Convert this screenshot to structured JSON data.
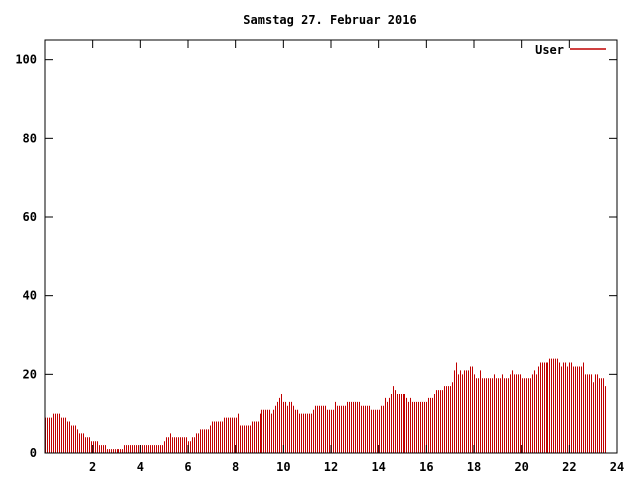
{
  "chart_data": {
    "type": "bar",
    "title": "Samstag 27. Februar 2016",
    "xlabel": "",
    "ylabel": "",
    "xlim": [
      0,
      24
    ],
    "ylim": [
      0,
      105
    ],
    "x_ticks": [
      2,
      4,
      6,
      8,
      10,
      12,
      14,
      16,
      18,
      20,
      22,
      24
    ],
    "y_ticks": [
      0,
      20,
      40,
      60,
      80,
      100
    ],
    "grid": false,
    "legend": {
      "position": "top-right",
      "entries": [
        "User"
      ]
    },
    "color": "#c00000",
    "series": [
      {
        "name": "User",
        "interval_minutes": 5,
        "values": [
          9,
          9,
          9,
          9,
          10,
          10,
          10,
          10,
          9,
          9,
          9,
          8,
          8,
          7,
          7,
          7,
          6,
          5,
          5,
          5,
          4,
          4,
          4,
          3,
          3,
          3,
          3,
          2,
          2,
          2,
          2,
          1,
          1,
          1,
          1,
          1,
          1,
          1,
          1,
          1,
          2,
          2,
          2,
          2,
          2,
          2,
          2,
          2,
          2,
          2,
          2,
          2,
          2,
          2,
          2,
          2,
          2,
          2,
          2,
          2,
          3,
          4,
          4,
          5,
          4,
          4,
          4,
          4,
          4,
          4,
          4,
          4,
          3,
          3,
          4,
          4,
          5,
          5,
          6,
          6,
          6,
          6,
          6,
          7,
          8,
          8,
          8,
          8,
          8,
          8,
          9,
          9,
          9,
          9,
          9,
          9,
          9,
          10,
          7,
          7,
          7,
          7,
          7,
          7,
          8,
          8,
          8,
          8,
          10,
          11,
          11,
          11,
          11,
          11,
          10,
          11,
          12,
          13,
          14,
          15,
          13,
          13,
          12,
          13,
          13,
          12,
          11,
          11,
          10,
          10,
          10,
          10,
          10,
          10,
          10,
          11,
          12,
          12,
          12,
          12,
          12,
          12,
          11,
          11,
          11,
          11,
          13,
          12,
          12,
          12,
          12,
          12,
          13,
          13,
          13,
          13,
          13,
          13,
          13,
          12,
          12,
          12,
          12,
          12,
          11,
          11,
          11,
          11,
          11,
          12,
          12,
          14,
          13,
          14,
          15,
          17,
          16,
          15,
          15,
          15,
          15,
          15,
          14,
          13,
          14,
          13,
          13,
          13,
          13,
          13,
          13,
          13,
          13,
          14,
          14,
          14,
          15,
          16,
          16,
          16,
          16,
          17,
          17,
          17,
          17,
          18,
          21,
          23,
          20,
          21,
          20,
          21,
          21,
          21,
          22,
          22,
          20,
          19,
          19,
          21,
          19,
          19,
          19,
          19,
          19,
          19,
          20,
          19,
          19,
          19,
          20,
          19,
          19,
          19,
          20,
          21,
          20,
          20,
          20,
          20,
          19,
          19,
          19,
          19,
          19,
          20,
          21,
          20,
          22,
          23,
          23,
          23,
          23,
          23,
          24,
          24,
          24,
          24,
          24,
          23,
          22,
          23,
          23,
          22,
          23,
          23,
          22,
          22,
          22,
          22,
          22,
          23,
          20,
          20,
          20,
          20,
          18,
          20,
          20,
          19,
          19,
          19,
          17
        ]
      }
    ]
  }
}
